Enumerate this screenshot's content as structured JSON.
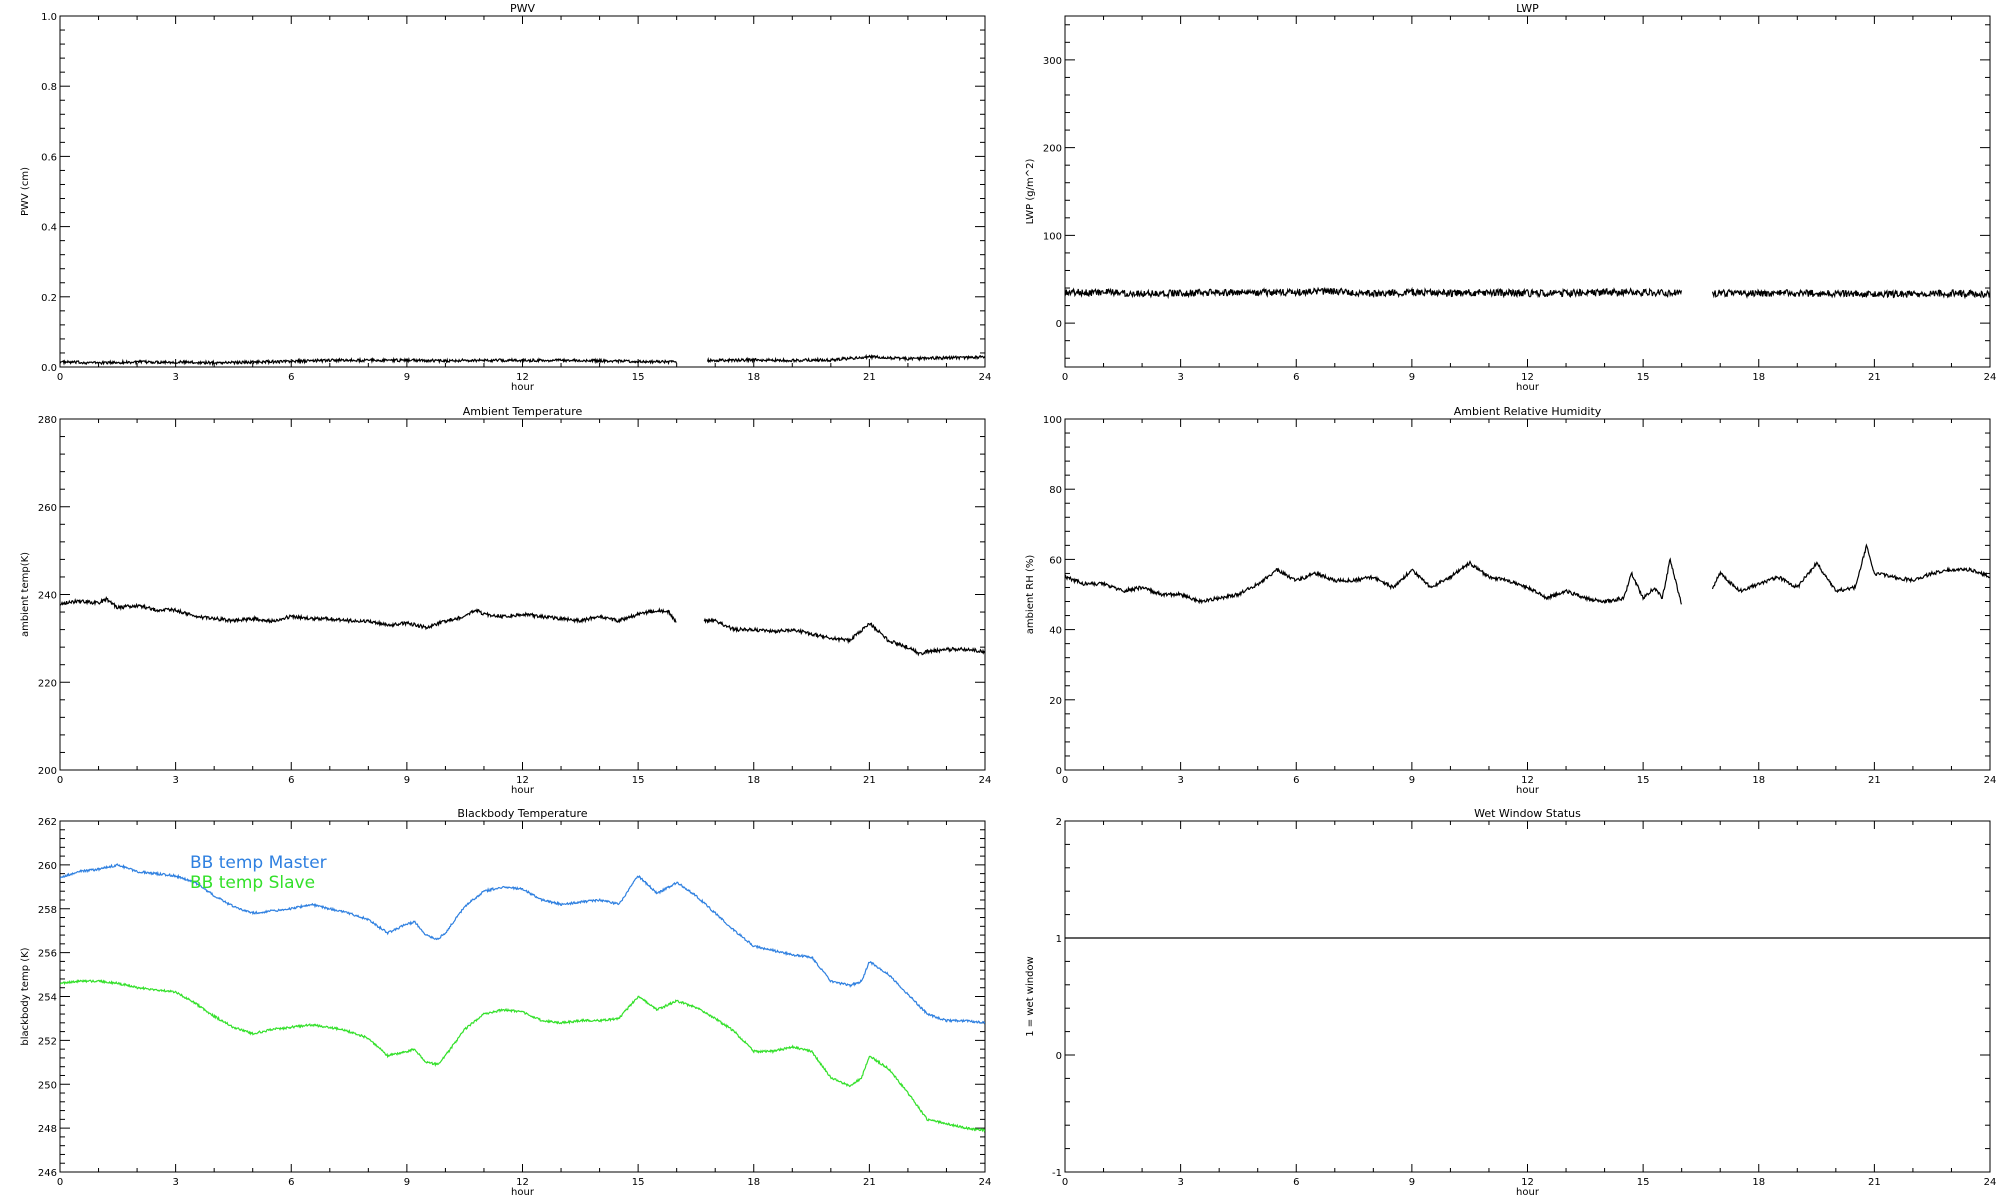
{
  "chart_data": [
    {
      "type": "line",
      "title": "PWV",
      "xlabel": "hour",
      "ylabel": "PWV (cm)",
      "xlim": [
        0,
        24
      ],
      "ylim": [
        0,
        1
      ],
      "x_ticks": [
        0,
        3,
        6,
        9,
        12,
        15,
        18,
        21,
        24
      ],
      "y_ticks": [
        0,
        0.2,
        0.4,
        0.6,
        0.8,
        1.0
      ],
      "y_tick_labels": [
        "0.0",
        "0.2",
        "0.4",
        "0.6",
        "0.8",
        "1.0"
      ],
      "gaps": [
        [
          16.0,
          16.8
        ]
      ],
      "series": [
        {
          "color": "#000000",
          "x": [
            0,
            1,
            2,
            3,
            4,
            5,
            6,
            7,
            8,
            9,
            10,
            11,
            12,
            13,
            14,
            15,
            16,
            16.8,
            18,
            19,
            20,
            21,
            22,
            23,
            24
          ],
          "values": [
            0.01,
            0.008,
            0.01,
            0.01,
            0.008,
            0.01,
            0.012,
            0.015,
            0.015,
            0.015,
            0.014,
            0.015,
            0.015,
            0.015,
            0.014,
            0.012,
            0.01,
            0.015,
            0.016,
            0.015,
            0.016,
            0.025,
            0.02,
            0.022,
            0.025
          ],
          "noise": 0.008
        }
      ]
    },
    {
      "type": "line",
      "title": "LWP",
      "xlabel": "hour",
      "ylabel": "LWP (g/m^2)",
      "xlim": [
        0,
        24
      ],
      "ylim": [
        -50,
        350
      ],
      "x_ticks": [
        0,
        3,
        6,
        9,
        12,
        15,
        18,
        21,
        24
      ],
      "y_ticks": [
        0,
        100,
        200,
        300
      ],
      "y_tick_labels": [
        "0",
        "100",
        "200",
        "300"
      ],
      "gaps": [
        [
          16.0,
          16.8
        ]
      ],
      "series": [
        {
          "color": "#000000",
          "x": [
            0,
            1,
            2,
            3,
            4,
            5,
            6,
            7,
            8,
            9,
            10,
            11,
            12,
            13,
            14,
            15,
            16,
            16.8,
            18,
            19,
            20,
            21,
            22,
            23,
            24
          ],
          "values": [
            35,
            35,
            34,
            34,
            35,
            35,
            35,
            36,
            34,
            35,
            34,
            35,
            34,
            34,
            35,
            35,
            34,
            34,
            34,
            34,
            34,
            33,
            33,
            34,
            33
          ],
          "noise": 4
        }
      ]
    },
    {
      "type": "line",
      "title": "Ambient Temperature",
      "xlabel": "hour",
      "ylabel": "ambient temp(K)",
      "xlim": [
        0,
        24
      ],
      "ylim": [
        200,
        280
      ],
      "x_ticks": [
        0,
        3,
        6,
        9,
        12,
        15,
        18,
        21,
        24
      ],
      "y_ticks": [
        200,
        220,
        240,
        260,
        280
      ],
      "y_tick_labels": [
        "200",
        "220",
        "240",
        "260",
        "280"
      ],
      "gaps": [
        [
          16.0,
          16.7
        ]
      ],
      "series": [
        {
          "color": "#000000",
          "x": [
            0,
            0.5,
            1,
            1.2,
            1.5,
            2,
            2.5,
            3,
            3.5,
            4,
            4.5,
            5,
            5.5,
            6,
            6.5,
            7,
            7.5,
            8,
            8.5,
            9,
            9.5,
            10,
            10.5,
            10.8,
            11,
            11.5,
            12,
            12.5,
            13,
            13.5,
            14,
            14.5,
            15,
            15.5,
            15.8,
            16.0,
            16.7,
            17,
            17.5,
            18,
            18.5,
            19,
            19.5,
            20,
            20.5,
            21,
            21.5,
            22,
            22.3,
            22.5,
            23,
            23.5,
            24
          ],
          "values": [
            238,
            238.5,
            238,
            239,
            237,
            237.5,
            236.5,
            236.5,
            235,
            234.5,
            234,
            234.5,
            234,
            235,
            234.5,
            234.5,
            234,
            234,
            233,
            233.5,
            232.5,
            234,
            235,
            236.5,
            235.5,
            235,
            235.5,
            235,
            234.5,
            234,
            235,
            234,
            235.5,
            236.5,
            236,
            233.5,
            234,
            234,
            232,
            232,
            231.5,
            232,
            231,
            230,
            229.5,
            233.5,
            229.5,
            228,
            226.5,
            227,
            227.5,
            227.5,
            227
          ],
          "noise": 0.4
        }
      ]
    },
    {
      "type": "line",
      "title": "Ambient Relative Humidity",
      "xlabel": "hour",
      "ylabel": "ambient RH (%)",
      "xlim": [
        0,
        24
      ],
      "ylim": [
        0,
        100
      ],
      "x_ticks": [
        0,
        3,
        6,
        9,
        12,
        15,
        18,
        21,
        24
      ],
      "y_ticks": [
        0,
        20,
        40,
        60,
        80,
        100
      ],
      "y_tick_labels": [
        "0",
        "20",
        "40",
        "60",
        "80",
        "100"
      ],
      "gaps": [
        [
          16.0,
          16.8
        ]
      ],
      "series": [
        {
          "color": "#000000",
          "x": [
            0,
            0.5,
            1,
            1.5,
            2,
            2.5,
            3,
            3.5,
            4,
            4.5,
            5,
            5.5,
            6,
            6.5,
            7,
            7.5,
            8,
            8.5,
            9,
            9.5,
            10,
            10.5,
            11,
            11.5,
            12,
            12.5,
            13,
            13.5,
            14,
            14.5,
            14.7,
            15,
            15.3,
            15.5,
            15.7,
            16.0,
            16.8,
            17,
            17.5,
            18,
            18.5,
            19,
            19.5,
            20,
            20.5,
            20.8,
            21,
            21.5,
            22,
            22.5,
            23,
            23.5,
            24
          ],
          "values": [
            55,
            53,
            53,
            51,
            52,
            50,
            50,
            48,
            49,
            50,
            53,
            57,
            54,
            56,
            54,
            54,
            55,
            52,
            57,
            52,
            55,
            59,
            55,
            54,
            52,
            49,
            51,
            49,
            48,
            49,
            56,
            49,
            52,
            49,
            60,
            47,
            52,
            56,
            51,
            53,
            55,
            52,
            59,
            51,
            52,
            64,
            56,
            55,
            54,
            56,
            57,
            57,
            55
          ],
          "noise": 0.5
        }
      ]
    },
    {
      "type": "line",
      "title": "Blackbody Temperature",
      "xlabel": "hour",
      "ylabel": "blackbody temp (K)",
      "xlim": [
        0,
        24
      ],
      "ylim": [
        246,
        262
      ],
      "x_ticks": [
        0,
        3,
        6,
        9,
        12,
        15,
        18,
        21,
        24
      ],
      "y_ticks": [
        246,
        248,
        250,
        252,
        254,
        256,
        258,
        260,
        262
      ],
      "y_tick_labels": [
        "246",
        "248",
        "250",
        "252",
        "254",
        "256",
        "258",
        "260",
        "262"
      ],
      "legend": "top-left",
      "series": [
        {
          "name": "BB temp Master",
          "color": "#2f80e0",
          "x": [
            0,
            0.5,
            1,
            1.5,
            2,
            2.5,
            3,
            3.5,
            4,
            4.5,
            5,
            5.5,
            6,
            6.5,
            7,
            7.5,
            8,
            8.5,
            9,
            9.2,
            9.5,
            9.8,
            10,
            10.5,
            11,
            11.5,
            12,
            12.5,
            13,
            13.5,
            14,
            14.5,
            15,
            15.5,
            16,
            16.5,
            17,
            17.5,
            18,
            18.5,
            19,
            19.5,
            20,
            20.5,
            20.8,
            21,
            21.5,
            22,
            22.5,
            23,
            23.5,
            24
          ],
          "values": [
            259.4,
            259.7,
            259.8,
            260.0,
            259.7,
            259.6,
            259.5,
            259.2,
            258.6,
            258.1,
            257.8,
            257.9,
            258.0,
            258.2,
            258.0,
            257.8,
            257.5,
            256.9,
            257.3,
            257.4,
            256.8,
            256.6,
            256.9,
            258.1,
            258.8,
            259.0,
            258.9,
            258.4,
            258.2,
            258.3,
            258.4,
            258.2,
            259.5,
            258.7,
            259.2,
            258.6,
            257.8,
            257.0,
            256.3,
            256.1,
            255.9,
            255.8,
            254.7,
            254.5,
            254.7,
            255.6,
            255.0,
            254.1,
            253.2,
            252.9,
            252.9,
            252.8
          ],
          "noise": 0.05
        },
        {
          "name": "BB temp Slave",
          "color": "#33e02a",
          "x": [
            0,
            0.5,
            1,
            1.5,
            2,
            2.5,
            3,
            3.5,
            4,
            4.5,
            5,
            5.5,
            6,
            6.5,
            7,
            7.5,
            8,
            8.5,
            9,
            9.2,
            9.5,
            9.8,
            10,
            10.5,
            11,
            11.5,
            12,
            12.5,
            13,
            13.5,
            14,
            14.5,
            15,
            15.5,
            16,
            16.5,
            17,
            17.5,
            18,
            18.5,
            19,
            19.5,
            20,
            20.5,
            20.8,
            21,
            21.5,
            22,
            22.5,
            23,
            23.5,
            24
          ],
          "values": [
            254.6,
            254.7,
            254.7,
            254.6,
            254.4,
            254.3,
            254.2,
            253.7,
            253.1,
            252.6,
            252.3,
            252.5,
            252.6,
            252.7,
            252.6,
            252.4,
            252.1,
            251.3,
            251.5,
            251.6,
            251.0,
            250.9,
            251.3,
            252.5,
            253.2,
            253.4,
            253.3,
            252.9,
            252.8,
            252.9,
            252.9,
            253.0,
            254.0,
            253.4,
            253.8,
            253.5,
            253.0,
            252.4,
            251.5,
            251.5,
            251.7,
            251.5,
            250.3,
            249.9,
            250.3,
            251.3,
            250.7,
            249.6,
            248.4,
            248.2,
            248.0,
            247.9
          ],
          "noise": 0.05
        }
      ]
    },
    {
      "type": "line",
      "title": "Wet Window Status",
      "xlabel": "hour",
      "ylabel": "1 = wet window",
      "xlim": [
        0,
        24
      ],
      "ylim": [
        -1,
        2
      ],
      "x_ticks": [
        0,
        3,
        6,
        9,
        12,
        15,
        18,
        21,
        24
      ],
      "y_ticks": [
        -1,
        0,
        1,
        2
      ],
      "y_tick_labels": [
        "-1",
        "0",
        "1",
        "2"
      ],
      "series": [
        {
          "color": "#000000",
          "x": [
            0,
            24
          ],
          "values": [
            1,
            1
          ],
          "noise": 0
        }
      ]
    }
  ]
}
